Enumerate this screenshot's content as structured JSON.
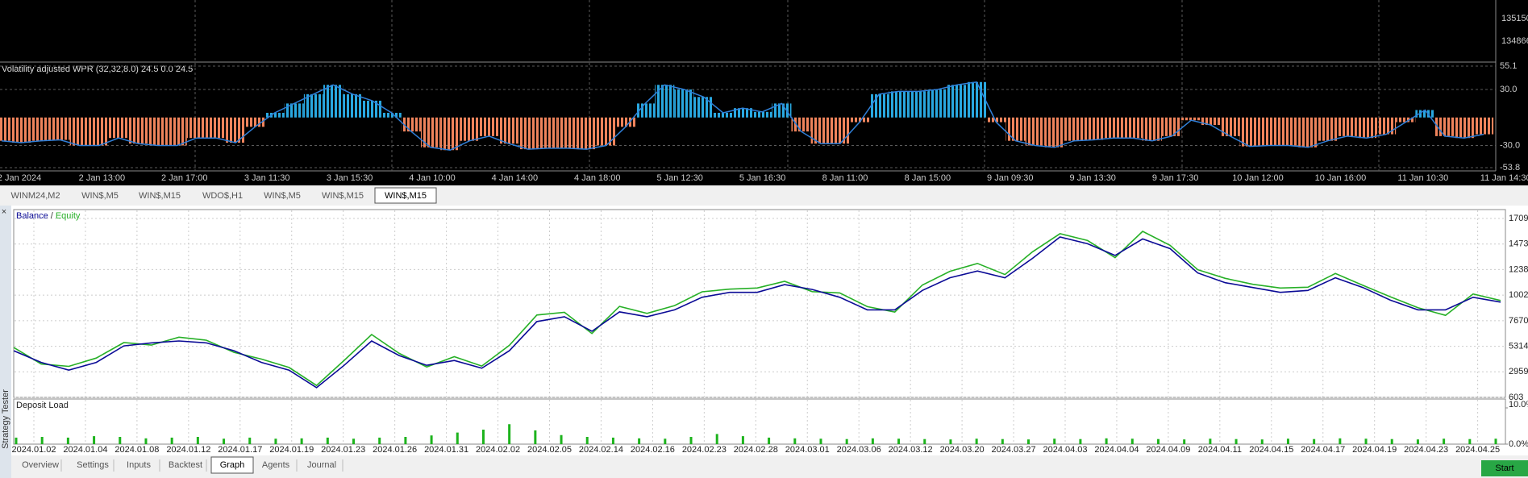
{
  "price_axis_labels": [
    "135150",
    "134866"
  ],
  "chart_data": [
    {
      "type": "bar",
      "title": "Volatility adjusted WPR (32,32,8.0) 24.5 0.0 24.5",
      "values": [
        -25,
        -27,
        -25,
        -24,
        -30,
        -30,
        -22,
        -28,
        -30,
        -30,
        -22,
        -22,
        -27,
        -10,
        5,
        15,
        25,
        35,
        25,
        18,
        5,
        -15,
        -32,
        -35,
        -25,
        -20,
        -28,
        -34,
        -33,
        -33,
        -34,
        -30,
        -10,
        15,
        35,
        30,
        22,
        5,
        10,
        6,
        15,
        -15,
        -28,
        -28,
        -5,
        25,
        28,
        28,
        30,
        35,
        38,
        -5,
        -25,
        -30,
        -32,
        -25,
        -24,
        -22,
        -22,
        -25,
        -20,
        -3,
        -8,
        -20,
        -31,
        -30,
        -30,
        -32,
        -25,
        -20,
        -22,
        -18,
        -5,
        8,
        -20,
        -22,
        -18
      ],
      "positive_color": "#29a8e0",
      "negative_color": "#f0845c",
      "line_color": "#2f7fd8",
      "ylim": [
        -53.8,
        55.1
      ],
      "yticks": [
        55.1,
        {
          "value": 30,
          "label": "30.0"
        },
        {
          "value": -30,
          "label": "-30.0"
        },
        -53.8
      ],
      "xtick_labels": [
        "2 Jan 2024",
        "2 Jan 13:00",
        "2 Jan 17:00",
        "3 Jan 11:30",
        "3 Jan 15:30",
        "4 Jan 10:00",
        "4 Jan 14:00",
        "4 Jan 18:00",
        "5 Jan 12:30",
        "5 Jan 16:30",
        "8 Jan 11:00",
        "8 Jan 15:00",
        "9 Jan 09:30",
        "9 Jan 13:30",
        "9 Jan 17:30",
        "10 Jan 12:00",
        "10 Jan 16:00",
        "11 Jan 10:30",
        "11 Jan 14:30"
      ]
    },
    {
      "type": "line",
      "series": [
        {
          "name": "Balance",
          "color": "#0b0b96",
          "values": [
            4904,
            3829,
            3112,
            3829,
            5352,
            5621,
            5800,
            5621,
            4904,
            3829,
            3112,
            1499,
            3560,
            5800,
            4456,
            3560,
            4008,
            3291,
            4904,
            7592,
            8040,
            6696,
            8488,
            8040,
            8667,
            9832,
            10280,
            10280,
            10997,
            10549,
            9832,
            8667,
            8667,
            10459,
            11624,
            12251,
            11624,
            13416,
            15387,
            14760,
            13685,
            15208,
            14312,
            12072,
            11176,
            10728,
            10280,
            10459,
            11624,
            10728,
            9563,
            8667,
            8667,
            9832,
            9384
          ]
        },
        {
          "name": "Equity",
          "color": "#27b027",
          "values": [
            5204,
            3679,
            3462,
            4229,
            5652,
            5421,
            6150,
            5871,
            4754,
            4129,
            3362,
            1699,
            4010,
            6400,
            4656,
            3410,
            4358,
            3491,
            5404,
            8192,
            8440,
            6496,
            8988,
            8340,
            9067,
            10332,
            10580,
            10680,
            11297,
            10349,
            10232,
            8967,
            8467,
            10959,
            12224,
            12951,
            11924,
            14016,
            15687,
            15060,
            13485,
            15908,
            14612,
            12372,
            11576,
            11028,
            10680,
            10759,
            12024,
            10928,
            9863,
            8867,
            8167,
            10132,
            9534
          ]
        }
      ],
      "legend_separator": "/",
      "ylim": [
        603,
        17094
      ],
      "yticks": [
        {
          "value": 17094,
          "label": "1709"
        },
        {
          "value": 14738,
          "label": "1473"
        },
        {
          "value": 12382,
          "label": "1238"
        },
        {
          "value": 10026,
          "label": "1002"
        },
        7670,
        5314,
        2959,
        603
      ],
      "xtick_labels": [
        "2024.01.02",
        "2024.01.04",
        "2024.01.08",
        "2024.01.12",
        "2024.01.17",
        "2024.01.19",
        "2024.01.23",
        "2024.01.26",
        "2024.01.31",
        "2024.02.02",
        "2024.02.05",
        "2024.02.14",
        "2024.02.16",
        "2024.02.23",
        "2024.02.28",
        "2024.03.01",
        "2024.03.06",
        "2024.03.12",
        "2024.03.20",
        "2024.03.27",
        "2024.04.03",
        "2024.04.04",
        "2024.04.09",
        "2024.04.11",
        "2024.04.15",
        "2024.04.17",
        "2024.04.19",
        "2024.04.23",
        "2024.04.25"
      ],
      "grid": true
    },
    {
      "type": "bar",
      "title": "Deposit Load",
      "values": [
        1.8,
        2.0,
        1.8,
        2.2,
        2.0,
        1.6,
        1.8,
        2.0,
        1.5,
        1.8,
        1.5,
        1.6,
        1.8,
        1.5,
        1.8,
        2.0,
        2.4,
        3.2,
        4.0,
        5.5,
        3.8,
        2.5,
        2.0,
        1.8,
        1.6,
        1.5,
        2.0,
        2.8,
        2.2,
        1.8,
        1.6,
        1.5,
        1.4,
        1.6,
        1.5,
        1.4,
        1.3,
        1.5,
        1.4,
        1.3,
        1.5,
        1.4,
        1.6,
        1.5,
        1.4,
        1.3,
        1.5,
        1.4,
        1.3,
        1.5,
        1.4,
        1.6,
        1.5,
        1.4,
        1.3,
        1.5,
        1.4,
        1.5
      ],
      "color": "#1db31d",
      "ylim": [
        0,
        10
      ],
      "yticks": [
        {
          "value": 10,
          "label": "10.0%"
        },
        {
          "value": 0,
          "label": "0.0%"
        }
      ]
    }
  ],
  "symbol_tabs": [
    "WINM24,M2",
    "WIN$,M5",
    "WIN$,M15",
    "WDO$,H1",
    "WIN$,M5",
    "WIN$,M15",
    "WIN$,M15"
  ],
  "active_symbol_tab": 6,
  "tester_tabs": [
    "Overview",
    "Settings",
    "Inputs",
    "Backtest",
    "Graph",
    "Agents",
    "Journal"
  ],
  "active_tester_tab": 4,
  "side_label": "Strategy Tester",
  "start_button": "Start"
}
